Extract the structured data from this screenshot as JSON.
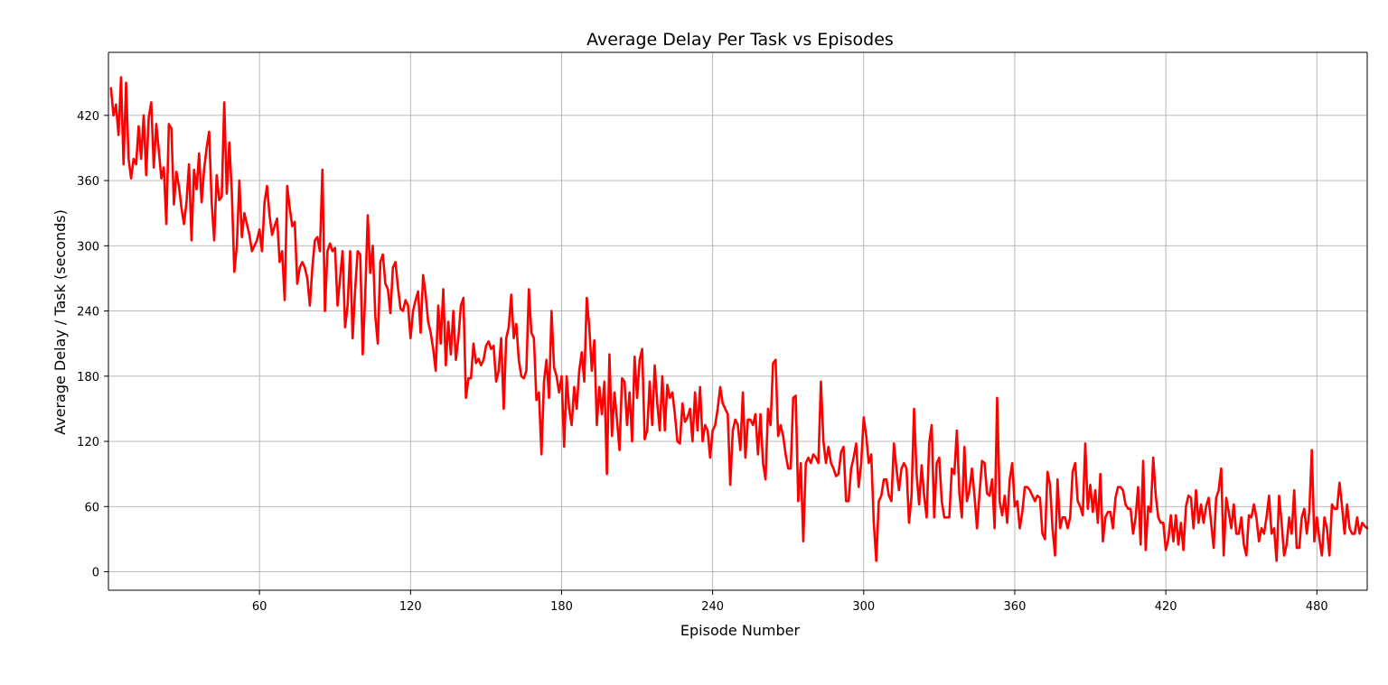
{
  "chart_data": {
    "type": "line",
    "title": "Average Delay Per Task vs Episodes",
    "xlabel": "Episode Number",
    "ylabel": "Average Delay / Task (seconds)",
    "xlim": [
      0,
      500
    ],
    "ylim": [
      -17,
      478
    ],
    "xticks": [
      60,
      120,
      180,
      240,
      300,
      360,
      420,
      480
    ],
    "yticks": [
      0,
      60,
      120,
      180,
      240,
      300,
      360,
      420
    ],
    "grid": true,
    "legend": "none",
    "series": [
      {
        "color": "#ff0000",
        "x_start": 1,
        "x_step": 1,
        "values": [
          445,
          420,
          430,
          402,
          455,
          375,
          450,
          380,
          362,
          380,
          375,
          410,
          380,
          420,
          365,
          418,
          432,
          372,
          412,
          388,
          362,
          372,
          320,
          412,
          408,
          338,
          368,
          355,
          335,
          320,
          340,
          375,
          305,
          370,
          352,
          385,
          340,
          370,
          390,
          405,
          340,
          305,
          365,
          342,
          345,
          432,
          348,
          395,
          350,
          276,
          300,
          360,
          308,
          330,
          320,
          310,
          295,
          300,
          305,
          315,
          295,
          340,
          355,
          328,
          310,
          318,
          325,
          285,
          295,
          250,
          355,
          335,
          318,
          322,
          265,
          280,
          285,
          280,
          270,
          245,
          280,
          305,
          308,
          295,
          370,
          240,
          295,
          302,
          295,
          298,
          245,
          270,
          295,
          225,
          245,
          295,
          215,
          260,
          295,
          292,
          200,
          255,
          328,
          275,
          300,
          235,
          210,
          285,
          292,
          265,
          260,
          238,
          280,
          285,
          262,
          242,
          240,
          250,
          245,
          215,
          240,
          250,
          258,
          220,
          273,
          255,
          230,
          220,
          205,
          185,
          245,
          210,
          260,
          190,
          230,
          200,
          240,
          195,
          215,
          245,
          252,
          160,
          178,
          178,
          210,
          192,
          196,
          190,
          195,
          208,
          212,
          205,
          208,
          175,
          185,
          215,
          150,
          215,
          225,
          255,
          215,
          228,
          195,
          180,
          178,
          185,
          260,
          220,
          215,
          158,
          165,
          108,
          175,
          195,
          160,
          240,
          188,
          180,
          165,
          180,
          115,
          180,
          150,
          135,
          170,
          150,
          185,
          202,
          175,
          252,
          225,
          185,
          213,
          135,
          170,
          145,
          175,
          90,
          200,
          125,
          165,
          140,
          112,
          178,
          175,
          135,
          165,
          120,
          198,
          160,
          195,
          205,
          122,
          130,
          175,
          135,
          190,
          155,
          130,
          180,
          130,
          172,
          160,
          165,
          145,
          120,
          118,
          155,
          138,
          142,
          150,
          120,
          165,
          130,
          170,
          120,
          135,
          130,
          105,
          130,
          135,
          150,
          170,
          155,
          150,
          145,
          80,
          130,
          140,
          135,
          112,
          165,
          105,
          140,
          140,
          135,
          145,
          108,
          145,
          100,
          85,
          150,
          135,
          192,
          195,
          125,
          135,
          125,
          108,
          95,
          95,
          160,
          162,
          65,
          100,
          28,
          100,
          105,
          100,
          108,
          105,
          100,
          175,
          120,
          100,
          115,
          100,
          95,
          88,
          90,
          110,
          115,
          65,
          65,
          95,
          105,
          118,
          78,
          100,
          142,
          125,
          100,
          108,
          45,
          10,
          65,
          70,
          85,
          85,
          70,
          65,
          118,
          95,
          75,
          95,
          100,
          95,
          45,
          70,
          150,
          90,
          62,
          98,
          70,
          50,
          118,
          135,
          50,
          100,
          105,
          65,
          50,
          50,
          50,
          95,
          90,
          130,
          72,
          50,
          115,
          65,
          75,
          95,
          70,
          40,
          72,
          102,
          100,
          72,
          70,
          85,
          40,
          160,
          65,
          52,
          70,
          45,
          85,
          100,
          60,
          65,
          40,
          55,
          78,
          78,
          75,
          70,
          65,
          70,
          68,
          35,
          30,
          92,
          80,
          40,
          15,
          85,
          40,
          50,
          50,
          40,
          50,
          92,
          100,
          65,
          60,
          52,
          118,
          58,
          80,
          55,
          75,
          45,
          90,
          28,
          50,
          55,
          55,
          40,
          68,
          78,
          78,
          75,
          62,
          58,
          58,
          35,
          50,
          78,
          25,
          102,
          20,
          60,
          55,
          105,
          70,
          50,
          45,
          45,
          20,
          30,
          52,
          28,
          52,
          25,
          45,
          20,
          60,
          70,
          68,
          40,
          75,
          45,
          62,
          45,
          60,
          68,
          45,
          22,
          68,
          75,
          95,
          15,
          68,
          55,
          40,
          62,
          35,
          35,
          50,
          25,
          15,
          52,
          50,
          62,
          50,
          28,
          40,
          35,
          50,
          70,
          35,
          40,
          10,
          70,
          45,
          15,
          25,
          50,
          35,
          75,
          22,
          22,
          50,
          58,
          35,
          55,
          112,
          28,
          50,
          30,
          15,
          50,
          40,
          15,
          62,
          58,
          58,
          82,
          60,
          35,
          62,
          40,
          35,
          35,
          50,
          35,
          45,
          42,
          40
        ]
      }
    ]
  }
}
